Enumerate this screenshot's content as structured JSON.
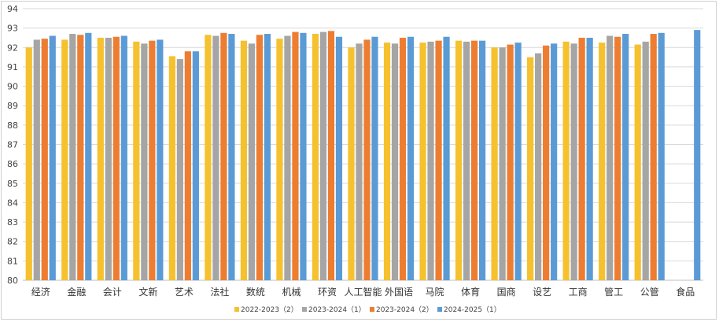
{
  "chart_data": {
    "type": "bar",
    "title": "",
    "xlabel": "",
    "ylabel": "",
    "ylim": [
      80,
      94
    ],
    "y_ticks": [
      80,
      81,
      82,
      83,
      84,
      85,
      86,
      87,
      88,
      89,
      90,
      91,
      92,
      93,
      94
    ],
    "grid": true,
    "legend_position": "bottom",
    "categories": [
      "经济",
      "金融",
      "会计",
      "文新",
      "艺术",
      "法社",
      "数统",
      "机械",
      "环资",
      "人工智能",
      "外国语",
      "马院",
      "体育",
      "国商",
      "设艺",
      "工商",
      "管工",
      "公管",
      "食品"
    ],
    "series": [
      {
        "name": "2022-2023（2）",
        "color": "#F5C12E",
        "values": [
          92.0,
          92.4,
          92.5,
          92.3,
          91.55,
          92.65,
          92.35,
          92.45,
          92.7,
          92.0,
          92.25,
          92.25,
          92.35,
          92.0,
          91.5,
          92.3,
          92.25,
          92.15,
          null
        ]
      },
      {
        "name": "2023-2024（1）",
        "color": "#A5A5A5",
        "values": [
          92.4,
          92.7,
          92.5,
          92.2,
          91.4,
          92.6,
          92.2,
          92.6,
          92.8,
          92.2,
          92.2,
          92.3,
          92.3,
          92.0,
          91.7,
          92.2,
          92.6,
          92.3,
          null
        ]
      },
      {
        "name": "2023-2024（2）",
        "color": "#ED7D31",
        "values": [
          92.45,
          92.65,
          92.55,
          92.35,
          91.8,
          92.75,
          92.65,
          92.8,
          92.85,
          92.4,
          92.5,
          92.35,
          92.35,
          92.15,
          92.1,
          92.5,
          92.55,
          92.7,
          null
        ]
      },
      {
        "name": "2024-2025（1）",
        "color": "#5B9BD5",
        "values": [
          92.6,
          92.75,
          92.6,
          92.4,
          91.8,
          92.7,
          92.7,
          92.75,
          92.55,
          92.55,
          92.55,
          92.55,
          92.35,
          92.25,
          92.2,
          92.5,
          92.7,
          92.75,
          92.9
        ]
      }
    ]
  }
}
